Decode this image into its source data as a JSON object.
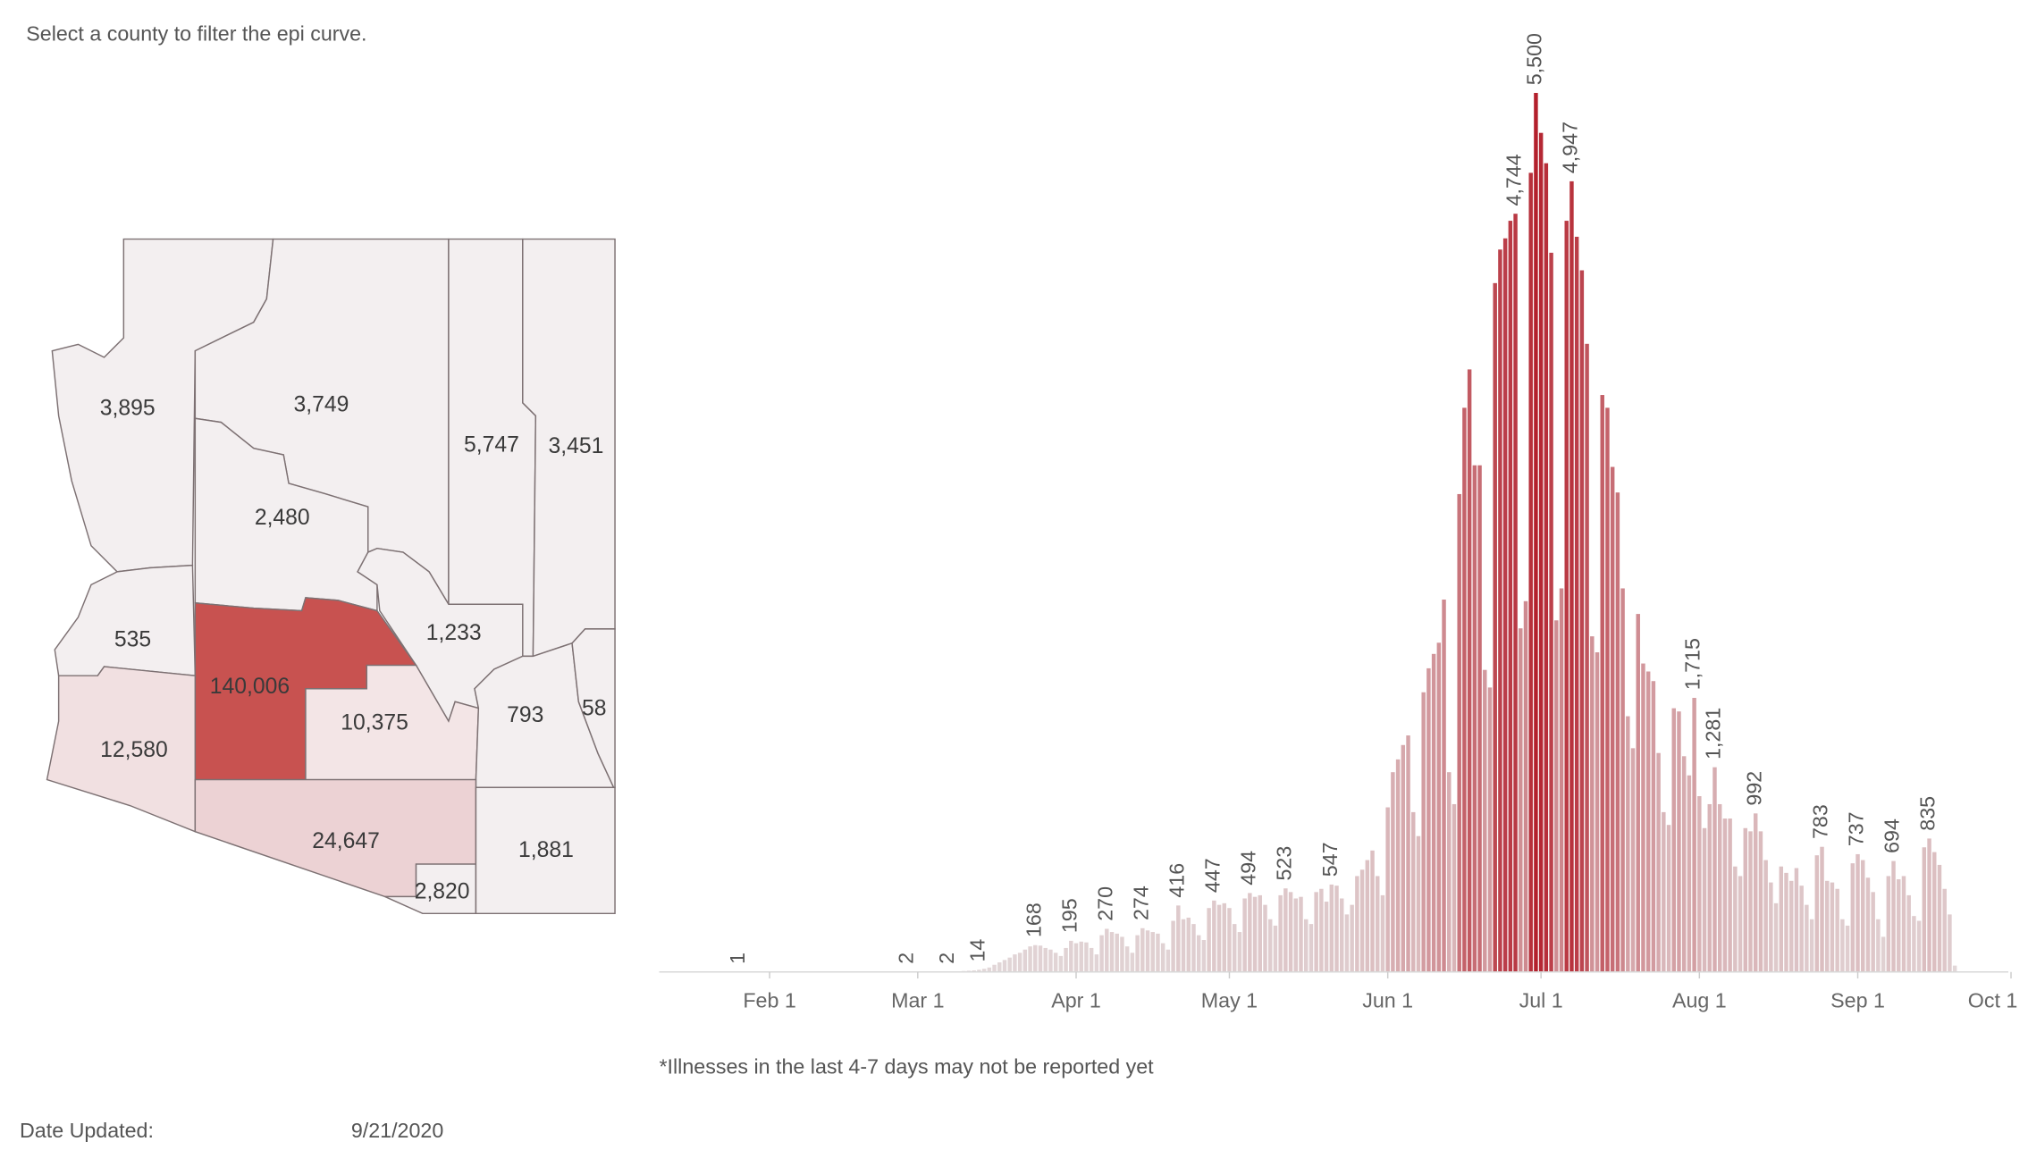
{
  "instruction": "Select a county to filter the epi curve.",
  "footnote": "*Illnesses in the last 4-7 days may not be reported yet",
  "date_updated": {
    "label": "Date Updated:",
    "value": "9/21/2020"
  },
  "chart_data": [
    {
      "type": "map",
      "values": [
        3895,
        3749,
        5747,
        3451,
        2480,
        1233,
        535,
        140006,
        10375,
        793,
        58,
        12580,
        24647,
        2820,
        1881
      ],
      "value_labels": [
        "3,895",
        "3,749",
        "5,747",
        "3,451",
        "2,480",
        "1,233",
        "535",
        "140,006",
        "10,375",
        "793",
        "58",
        "12,580",
        "24,647",
        "2,820",
        "1,881"
      ],
      "colors": [
        "#f3eff0",
        "#f3eff0",
        "#f3eff0",
        "#f3eff0",
        "#f3eff0",
        "#f3eff0",
        "#f3eff0",
        "#c85250",
        "#f3e5e6",
        "#f3eff0",
        "#f3eff0",
        "#f1e0e1",
        "#ecd2d4",
        "#f3eff0",
        "#f3eff0"
      ]
    },
    {
      "type": "bar",
      "x": [
        "01-26",
        "02-28",
        "03-07",
        "03-08",
        "03-09",
        "03-10",
        "03-11",
        "03-12",
        "03-13",
        "03-14",
        "03-15",
        "03-16",
        "03-17",
        "03-18",
        "03-19",
        "03-20",
        "03-21",
        "03-22",
        "03-23",
        "03-24",
        "03-25",
        "03-26",
        "03-27",
        "03-28",
        "03-29",
        "03-30",
        "03-31",
        "04-01",
        "04-02",
        "04-03",
        "04-04",
        "04-05",
        "04-06",
        "04-07",
        "04-08",
        "04-09",
        "04-10",
        "04-11",
        "04-12",
        "04-13",
        "04-14",
        "04-15",
        "04-16",
        "04-17",
        "04-18",
        "04-19",
        "04-20",
        "04-21",
        "04-22",
        "04-23",
        "04-24",
        "04-25",
        "04-26",
        "04-27",
        "04-28",
        "04-29",
        "04-30",
        "05-01",
        "05-02",
        "05-03",
        "05-04",
        "05-05",
        "05-06",
        "05-07",
        "05-08",
        "05-09",
        "05-10",
        "05-11",
        "05-12",
        "05-13",
        "05-14",
        "05-15",
        "05-16",
        "05-17",
        "05-18",
        "05-19",
        "05-20",
        "05-21",
        "05-22",
        "05-23",
        "05-24",
        "05-25",
        "05-26",
        "05-27",
        "05-28",
        "05-29",
        "05-30",
        "05-31",
        "06-01",
        "06-02",
        "06-03",
        "06-04",
        "06-05",
        "06-06",
        "06-07",
        "06-08",
        "06-09",
        "06-10",
        "06-11",
        "06-12",
        "06-13",
        "06-14",
        "06-15",
        "06-16",
        "06-17",
        "06-18",
        "06-19",
        "06-20",
        "06-21",
        "06-22",
        "06-23",
        "06-24",
        "06-25",
        "06-26",
        "06-27",
        "06-28",
        "06-29",
        "06-30",
        "07-01",
        "07-02",
        "07-03",
        "07-04",
        "07-05",
        "07-06",
        "07-07",
        "07-08",
        "07-09",
        "07-10",
        "07-11",
        "07-12",
        "07-13",
        "07-14",
        "07-15",
        "07-16",
        "07-17",
        "07-18",
        "07-19",
        "07-20",
        "07-21",
        "07-22",
        "07-23",
        "07-24",
        "07-25",
        "07-26",
        "07-27",
        "07-28",
        "07-29",
        "07-30",
        "07-31",
        "08-01",
        "08-02",
        "08-03",
        "08-04",
        "08-05",
        "08-06",
        "08-07",
        "08-08",
        "08-09",
        "08-10",
        "08-11",
        "08-12",
        "08-13",
        "08-14",
        "08-15",
        "08-16",
        "08-17",
        "08-18",
        "08-19",
        "08-20",
        "08-21",
        "08-22",
        "08-23",
        "08-24",
        "08-25",
        "08-26",
        "08-27",
        "08-28",
        "08-29",
        "08-30",
        "08-31",
        "09-01",
        "09-02",
        "09-03",
        "09-04",
        "09-05",
        "09-06",
        "09-07",
        "09-08",
        "09-09",
        "09-10",
        "09-11",
        "09-12",
        "09-13",
        "09-14",
        "09-15",
        "09-16",
        "09-17",
        "09-18",
        "09-19",
        "09-20"
      ],
      "values": [
        1,
        2,
        2,
        3,
        4,
        6,
        8,
        10,
        14,
        20,
        28,
        45,
        60,
        75,
        90,
        110,
        120,
        140,
        160,
        168,
        165,
        150,
        140,
        120,
        100,
        150,
        195,
        180,
        190,
        185,
        150,
        110,
        230,
        270,
        250,
        240,
        220,
        160,
        120,
        230,
        274,
        260,
        250,
        240,
        180,
        140,
        320,
        416,
        330,
        340,
        300,
        230,
        200,
        400,
        447,
        420,
        430,
        400,
        300,
        250,
        460,
        494,
        470,
        480,
        420,
        330,
        290,
        480,
        523,
        500,
        460,
        470,
        330,
        300,
        500,
        520,
        440,
        547,
        540,
        460,
        360,
        420,
        600,
        640,
        700,
        760,
        600,
        480,
        1030,
        1250,
        1330,
        1420,
        1480,
        1000,
        850,
        1750,
        1900,
        1990,
        2060,
        2330,
        1250,
        1050,
        2990,
        3530,
        3770,
        3170,
        3170,
        1890,
        1780,
        4310,
        4520,
        4590,
        4700,
        4744,
        2150,
        2320,
        5000,
        5500,
        5250,
        5060,
        4500,
        2200,
        2400,
        4700,
        4947,
        4600,
        4390,
        3930,
        2100,
        2000,
        3610,
        3530,
        3160,
        3000,
        2400,
        1600,
        1400,
        2240,
        1930,
        1880,
        1820,
        1370,
        1000,
        920,
        1650,
        1630,
        1350,
        1230,
        1715,
        1100,
        900,
        1050,
        1281,
        1050,
        960,
        960,
        660,
        600,
        900,
        880,
        992,
        880,
        700,
        560,
        430,
        660,
        620,
        570,
        650,
        540,
        420,
        330,
        730,
        783,
        570,
        560,
        520,
        330,
        290,
        680,
        737,
        700,
        590,
        500,
        330,
        220,
        600,
        694,
        580,
        600,
        480,
        350,
        320,
        780,
        835,
        750,
        670,
        520,
        360,
        40
      ],
      "value_labels": [
        "1",
        "2",
        "2",
        null,
        null,
        null,
        null,
        null,
        "14",
        null,
        null,
        null,
        null,
        null,
        null,
        null,
        null,
        null,
        null,
        "168",
        null,
        null,
        null,
        null,
        null,
        null,
        "195",
        null,
        null,
        null,
        null,
        null,
        null,
        "270",
        null,
        null,
        null,
        null,
        null,
        null,
        "274",
        null,
        null,
        null,
        null,
        null,
        null,
        "416",
        null,
        null,
        null,
        null,
        null,
        null,
        "447",
        null,
        null,
        null,
        null,
        null,
        null,
        "494",
        null,
        null,
        null,
        null,
        null,
        null,
        "523",
        null,
        null,
        null,
        null,
        null,
        null,
        null,
        null,
        "547",
        null,
        null,
        null,
        null,
        null,
        null,
        null,
        null,
        null,
        null,
        null,
        null,
        null,
        null,
        null,
        null,
        null,
        null,
        null,
        null,
        null,
        null,
        null,
        null,
        null,
        null,
        null,
        null,
        null,
        null,
        null,
        null,
        null,
        null,
        null,
        "4,744",
        null,
        null,
        null,
        "5,500",
        null,
        null,
        null,
        null,
        null,
        null,
        "4,947",
        null,
        null,
        null,
        null,
        null,
        null,
        null,
        null,
        null,
        null,
        null,
        null,
        null,
        null,
        null,
        null,
        null,
        null,
        null,
        null,
        null,
        null,
        null,
        "1,715",
        null,
        null,
        null,
        "1,281",
        null,
        null,
        null,
        null,
        null,
        null,
        null,
        "992",
        null,
        null,
        null,
        null,
        null,
        null,
        null,
        null,
        null,
        null,
        null,
        null,
        "783",
        null,
        null,
        null,
        null,
        null,
        null,
        "737",
        null,
        null,
        null,
        null,
        null,
        null,
        "694",
        null,
        null,
        null,
        null,
        null,
        null,
        "835",
        null,
        null,
        null,
        null,
        null
      ],
      "xlim": [
        "01-10",
        "10-02"
      ],
      "xticks": [
        {
          "value": "02-01",
          "label": "Feb 1"
        },
        {
          "value": "03-01",
          "label": "Mar 1"
        },
        {
          "value": "04-01",
          "label": "Apr 1"
        },
        {
          "value": "05-01",
          "label": "May 1"
        },
        {
          "value": "06-01",
          "label": "Jun 1"
        },
        {
          "value": "07-01",
          "label": "Jul 1"
        },
        {
          "value": "08-01",
          "label": "Aug 1"
        },
        {
          "value": "09-01",
          "label": "Sep 1"
        },
        {
          "value": "10-01",
          "label": "Oct 1"
        }
      ],
      "ylim": [
        0,
        6000
      ],
      "color_low": "#e2d8d9",
      "color_high": "#b3202c"
    }
  ]
}
